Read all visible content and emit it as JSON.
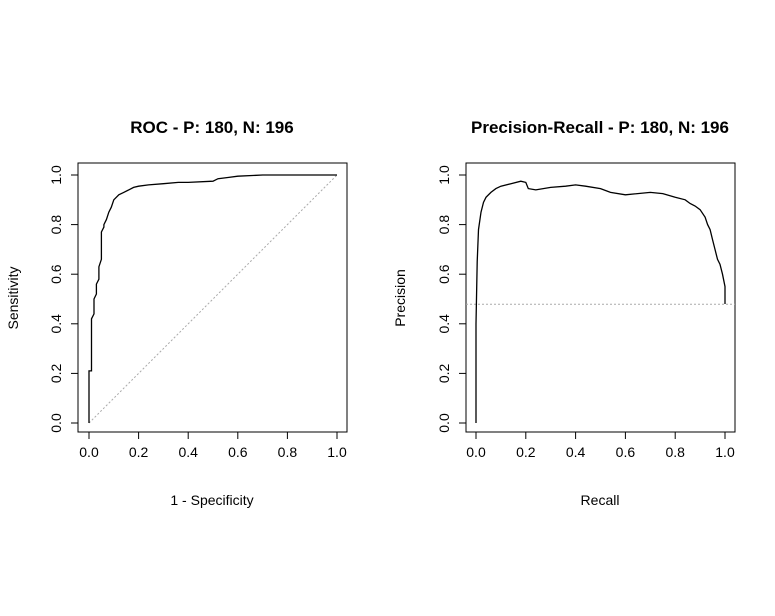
{
  "chart_data": [
    {
      "type": "line",
      "title": "ROC - P: 180, N: 196",
      "xlabel": "1 - Specificity",
      "ylabel": "Sensitivity",
      "xlim": [
        0,
        1
      ],
      "ylim": [
        0,
        1
      ],
      "x_ticks": [
        "0.0",
        "0.2",
        "0.4",
        "0.6",
        "0.8",
        "1.0"
      ],
      "y_ticks": [
        "0.0",
        "0.2",
        "0.4",
        "0.6",
        "0.8",
        "1.0"
      ],
      "grid": false,
      "reference_line": "diagonal",
      "series": [
        {
          "x": [
            0.0,
            0.0,
            0.01,
            0.01,
            0.02,
            0.02,
            0.03,
            0.03,
            0.04,
            0.04,
            0.05,
            0.05,
            0.06,
            0.06,
            0.07,
            0.08,
            0.09,
            0.1,
            0.11,
            0.12,
            0.14,
            0.16,
            0.18,
            0.2,
            0.24,
            0.3,
            0.36,
            0.4,
            0.5,
            0.52,
            0.56,
            0.6,
            0.7,
            0.8,
            1.0
          ],
          "y": [
            0.0,
            0.21,
            0.21,
            0.42,
            0.44,
            0.5,
            0.52,
            0.56,
            0.58,
            0.63,
            0.66,
            0.77,
            0.79,
            0.8,
            0.82,
            0.85,
            0.87,
            0.9,
            0.91,
            0.92,
            0.93,
            0.94,
            0.95,
            0.955,
            0.96,
            0.965,
            0.97,
            0.97,
            0.975,
            0.985,
            0.99,
            0.995,
            1.0,
            1.0,
            1.0
          ]
        }
      ]
    },
    {
      "type": "line",
      "title": "Precision-Recall - P: 180, N: 196",
      "xlabel": "Recall",
      "ylabel": "Precision",
      "xlim": [
        0,
        1
      ],
      "ylim": [
        0,
        1
      ],
      "x_ticks": [
        "0.0",
        "0.2",
        "0.4",
        "0.6",
        "0.8",
        "1.0"
      ],
      "y_ticks": [
        "0.0",
        "0.2",
        "0.4",
        "0.6",
        "0.8",
        "1.0"
      ],
      "grid": false,
      "baseline_precision": 0.479,
      "series": [
        {
          "x": [
            0.0,
            0.0,
            0.005,
            0.01,
            0.02,
            0.03,
            0.04,
            0.06,
            0.08,
            0.1,
            0.14,
            0.18,
            0.2,
            0.21,
            0.24,
            0.3,
            0.36,
            0.4,
            0.44,
            0.5,
            0.54,
            0.6,
            0.7,
            0.75,
            0.8,
            0.84,
            0.86,
            0.88,
            0.9,
            0.92,
            0.93,
            0.94,
            0.95,
            0.96,
            0.97,
            0.98,
            0.99,
            1.0,
            1.0
          ],
          "y": [
            0.0,
            0.4,
            0.65,
            0.78,
            0.85,
            0.89,
            0.91,
            0.93,
            0.945,
            0.955,
            0.965,
            0.975,
            0.97,
            0.945,
            0.94,
            0.95,
            0.955,
            0.96,
            0.955,
            0.945,
            0.93,
            0.92,
            0.93,
            0.925,
            0.91,
            0.9,
            0.885,
            0.875,
            0.86,
            0.83,
            0.8,
            0.78,
            0.74,
            0.7,
            0.66,
            0.64,
            0.6,
            0.55,
            0.48
          ]
        }
      ]
    }
  ]
}
